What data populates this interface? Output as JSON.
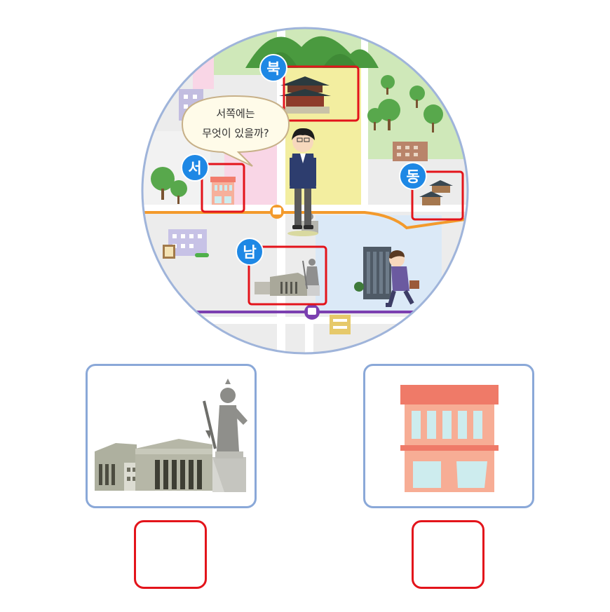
{
  "speech_bubble": {
    "line1": "서쪽에는",
    "line2": "무엇이 있을까?"
  },
  "directions": {
    "north": "북",
    "west": "서",
    "east": "동",
    "south": "남"
  },
  "choices": [
    {
      "icon": "statue-museum-icon",
      "answer": ""
    },
    {
      "icon": "store-building-icon",
      "answer": ""
    }
  ],
  "colors": {
    "highlight": "#e3141b",
    "label_badge": "#1e88e5",
    "card_border": "#8aa8d8",
    "road_orange": "#f39a2c",
    "road_purple": "#7b3fb0"
  }
}
